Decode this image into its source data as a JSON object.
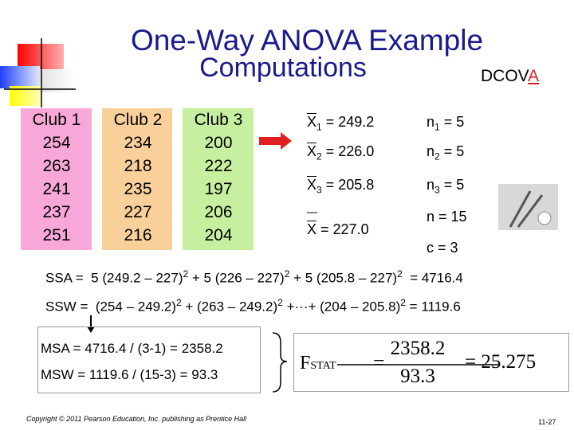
{
  "title": {
    "line1": "One-Way ANOVA Example",
    "line2": "Computations",
    "tag_prefix": "DCOV",
    "tag_highlight": "A"
  },
  "table": {
    "headers": [
      "Club 1",
      "Club 2",
      "Club 3"
    ],
    "columns": [
      [
        254,
        263,
        241,
        237,
        251
      ],
      [
        234,
        218,
        235,
        227,
        216
      ],
      [
        200,
        222,
        197,
        206,
        204
      ]
    ]
  },
  "means": [
    {
      "symbol": "X",
      "sub": "1",
      "rest": " = 249.2"
    },
    {
      "symbol": "X",
      "sub": "2",
      "rest": " = 226.0"
    },
    {
      "symbol": "X",
      "sub": "3",
      "rest": " = 205.8"
    }
  ],
  "sizes": [
    {
      "symbol": "n",
      "sub": "1",
      "rest": " = 5"
    },
    {
      "symbol": "n",
      "sub": "2",
      "rest": " = 5"
    },
    {
      "symbol": "n",
      "sub": "3",
      "rest": " = 5"
    }
  ],
  "grand_mean": {
    "symbol": "X",
    "rest": " = 227.0"
  },
  "total_n": "n = 15",
  "groups": "c = 3",
  "ssa": [
    "SSA =  5 (249.2 – 227)",
    "2",
    " + 5 (226 – 227)",
    "2",
    " + 5 (205.8 – 227)",
    "2",
    "  = 4716.4"
  ],
  "ssw": [
    "SSW =  (254 – 249.2)",
    "2",
    " + (263 – 249.2)",
    "2",
    " +···+ (204 – 205.8)",
    "2",
    " = 1119.6"
  ],
  "msa": "MSA = 4716.4 / (3-1) = 2358.2",
  "msw": "MSW = 1119.6 / (15-3) = 93.3",
  "fstat": {
    "label": "F",
    "sub": "STAT",
    "eq": "=",
    "numerator": "2358.2",
    "denominator": "93.3",
    "result": "= 25.275"
  },
  "footer": {
    "copyright": "Copyright © 2011 Pearson Education, Inc. publishing as Prentice Hall",
    "page": "11-27"
  }
}
